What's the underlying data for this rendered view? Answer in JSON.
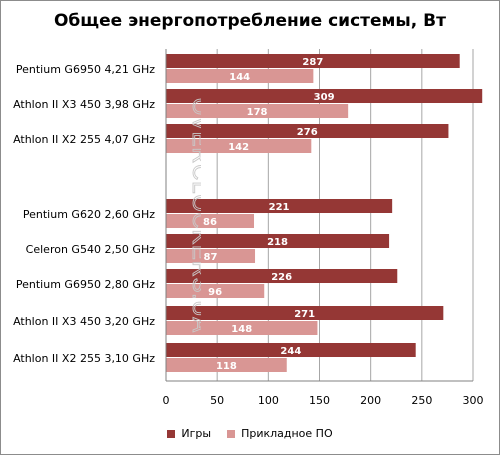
{
  "chart_data": {
    "type": "bar",
    "orientation": "horizontal",
    "title": "Общее энергопотребление системы, Вт",
    "categories": [
      "Pentium G6950 4,21 GHz",
      "Athlon II X3 450 3,98 GHz",
      "Athlon II X2 255 4,07 GHz",
      "Pentium G620 2,60 GHz",
      "Celeron G540 2,50 GHz",
      "Pentium G6950 2,80 GHz",
      "Athlon II X3 450 3,20 GHz",
      "Athlon II X2 255 3,10 GHz"
    ],
    "series": [
      {
        "name": "Игры",
        "color": "#953735",
        "values": [
          287,
          309,
          276,
          221,
          218,
          226,
          271,
          244
        ]
      },
      {
        "name": "Прикладное ПО",
        "color": "#d99694",
        "values": [
          144,
          178,
          142,
          86,
          87,
          96,
          148,
          118
        ]
      }
    ],
    "xlim": [
      0,
      300
    ],
    "xticks": [
      "0",
      "50",
      "100",
      "150",
      "200",
      "250",
      "300"
    ],
    "grid": true,
    "legend_position": "bottom"
  },
  "watermark": "OVERCLOCKERS.UA"
}
